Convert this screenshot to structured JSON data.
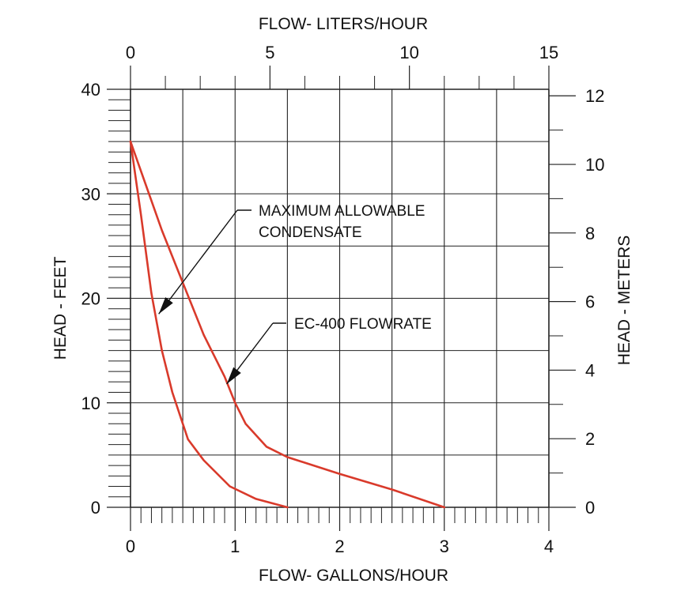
{
  "chart_data": {
    "type": "line",
    "title": "",
    "xlabel": "FLOW- GALLONS/HOUR",
    "ylabel": "HEAD - FEET",
    "x2label": "FLOW- LITERS/HOUR",
    "y2label": "HEAD - METERS",
    "xlim": [
      0,
      4
    ],
    "ylim": [
      0,
      40
    ],
    "x2lim": [
      0,
      15
    ],
    "y2lim": [
      0,
      12.19
    ],
    "xticks": [
      "0",
      "1",
      "2",
      "3",
      "4"
    ],
    "yticks": [
      "0",
      "10",
      "20",
      "30",
      "40"
    ],
    "x2ticks": [
      "0",
      "5",
      "10",
      "15"
    ],
    "y2ticks": [
      "0",
      "2",
      "4",
      "6",
      "8",
      "10",
      "12"
    ],
    "grid": true,
    "line_color": "#d93a2b",
    "series": [
      {
        "name": "MAXIMUM ALLOWABLE CONDENSATE",
        "x": [
          0,
          0.1,
          0.2,
          0.3,
          0.4,
          0.5,
          0.55,
          0.7,
          0.95,
          1.2,
          1.5
        ],
        "y": [
          35,
          28,
          20.5,
          15,
          11,
          8,
          6.5,
          4.5,
          2,
          0.8,
          0
        ]
      },
      {
        "name": "EC-400 FLOWRATE",
        "x": [
          0,
          0.3,
          0.5,
          0.7,
          0.9,
          1.0,
          1.1,
          1.3,
          1.5,
          2.0,
          2.5,
          3.0
        ],
        "y": [
          35,
          26.5,
          21.5,
          16.5,
          12.5,
          10,
          8,
          5.8,
          4.8,
          3.2,
          1.7,
          0
        ]
      }
    ],
    "annotations": [
      {
        "text_lines": [
          "MAXIMUM ALLOWABLE",
          "CONDENSATE"
        ],
        "points_to": {
          "x": 0.27,
          "y": 18.5
        }
      },
      {
        "text_lines": [
          "EC-400 FLOWRATE"
        ],
        "points_to": {
          "x": 0.92,
          "y": 11.8
        }
      }
    ]
  }
}
